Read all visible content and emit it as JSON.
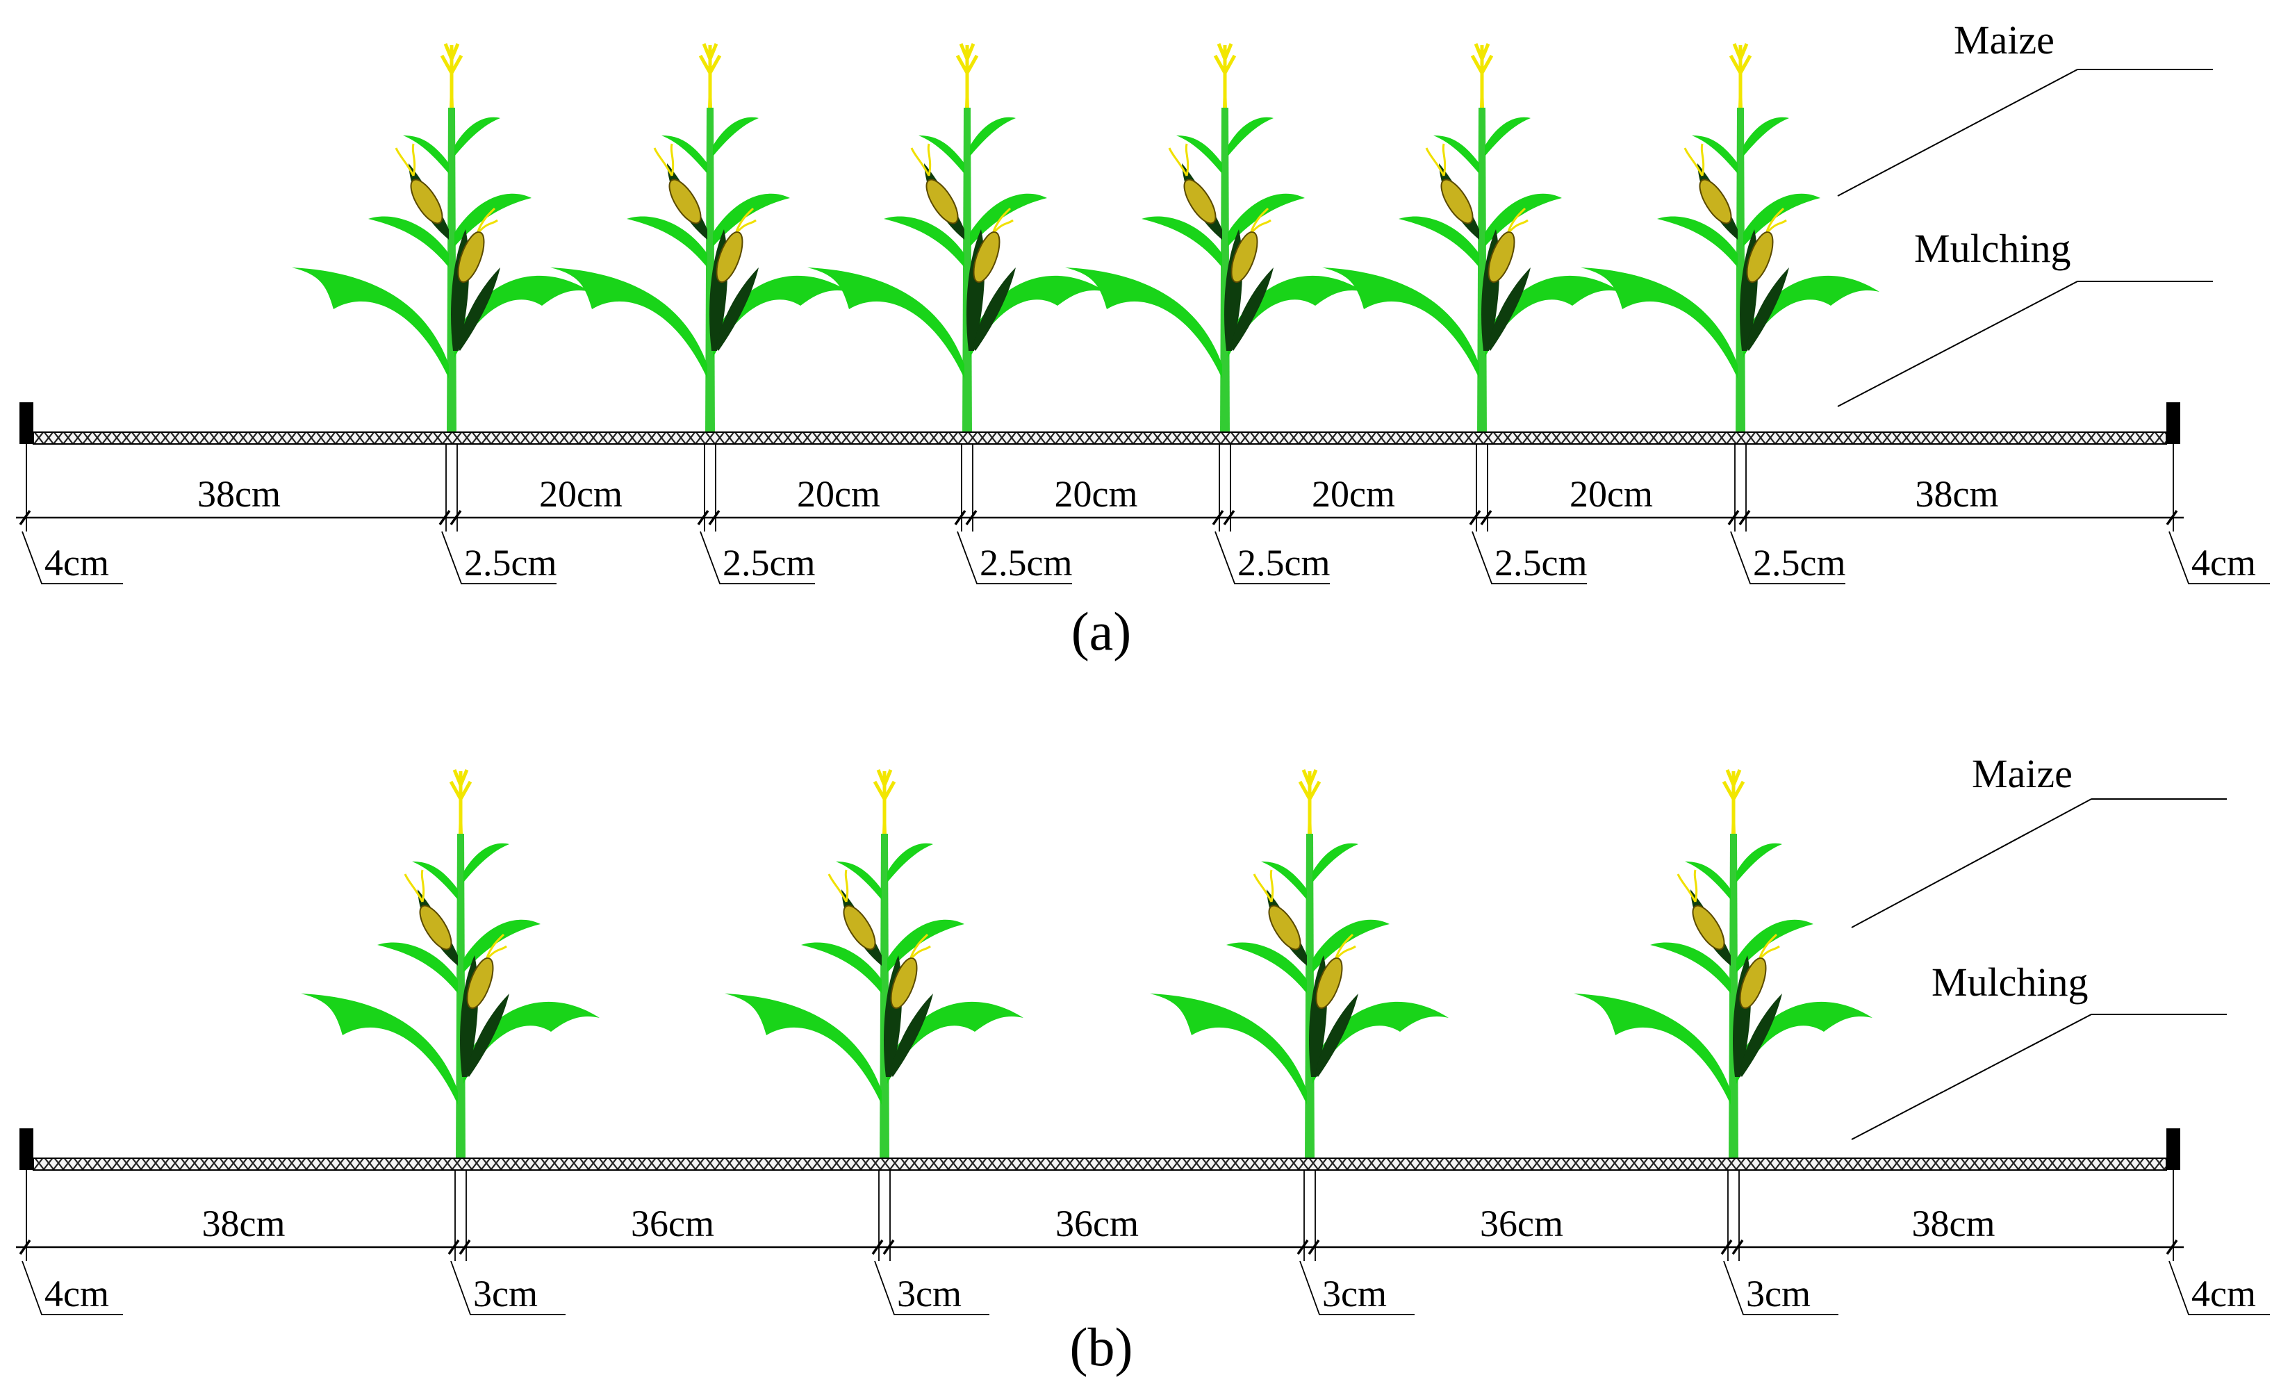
{
  "panels": [
    {
      "id": "a",
      "caption": "(a)",
      "callouts": {
        "maize": "Maize",
        "mulching": "Mulching"
      },
      "spans": [
        "38cm",
        "20cm",
        "20cm",
        "20cm",
        "20cm",
        "20cm",
        "38cm"
      ],
      "stem_labels": [
        "2.5cm",
        "2.5cm",
        "2.5cm",
        "2.5cm",
        "2.5cm",
        "2.5cm"
      ],
      "edge_labels": {
        "left": "4cm",
        "right": "4cm"
      },
      "plant_count": 6
    },
    {
      "id": "b",
      "caption": "(b)",
      "callouts": {
        "maize": "Maize",
        "mulching": "Mulching"
      },
      "spans": [
        "38cm",
        "36cm",
        "36cm",
        "36cm",
        "38cm"
      ],
      "stem_labels": [
        "3cm",
        "3cm",
        "3cm",
        "3cm"
      ],
      "edge_labels": {
        "left": "4cm",
        "right": "4cm"
      },
      "plant_count": 4
    }
  ],
  "colors": {
    "leaf": "#19d419",
    "stem": "#33cc33",
    "husk": "#0d3d0d",
    "kernel": "#c8b21e",
    "silk": "#f0e000",
    "tassel": "#f2e600",
    "line": "#000000",
    "mulch": "#3a3a3a"
  },
  "icons": {
    "plant": "maize-plant-icon",
    "mulch": "mulch-layer-icon"
  }
}
